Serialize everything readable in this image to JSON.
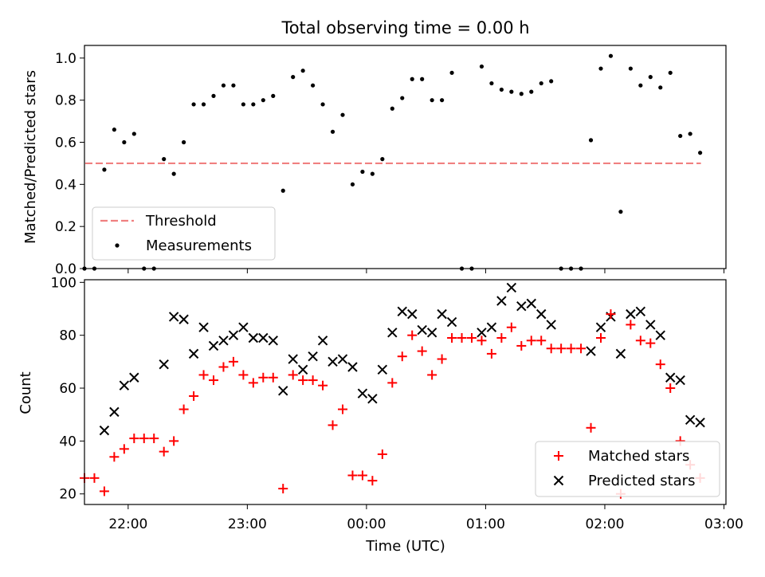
{
  "chart_data": [
    {
      "type": "scatter",
      "title": "Total observing time = 0.00 h",
      "xlabel": "",
      "ylabel": "Matched/Predicted stars",
      "xlim": [
        "21:38",
        "03:01"
      ],
      "ylim": [
        0,
        1.06
      ],
      "yticks": [
        "0.0",
        "0.2",
        "0.4",
        "0.6",
        "0.8",
        "1.0"
      ],
      "grid": false,
      "legend": {
        "placement": "lower-left",
        "entries": [
          "Threshold",
          "Measurements"
        ]
      },
      "threshold": {
        "name": "Threshold",
        "value": 0.5,
        "x_start": "21:38",
        "x_end": "02:48",
        "color": "#f08080",
        "style": "dashed"
      },
      "series": [
        {
          "name": "Measurements",
          "color": "#000000",
          "marker": "dot",
          "points": [
            [
              "21:38",
              0.0
            ],
            [
              "21:43",
              0.0
            ],
            [
              "21:48",
              0.47
            ],
            [
              "21:53",
              0.66
            ],
            [
              "21:58",
              0.6
            ],
            [
              "22:03",
              0.64
            ],
            [
              "22:08",
              0.0
            ],
            [
              "22:13",
              0.0
            ],
            [
              "22:18",
              0.52
            ],
            [
              "22:23",
              0.45
            ],
            [
              "22:28",
              0.6
            ],
            [
              "22:33",
              0.78
            ],
            [
              "22:38",
              0.78
            ],
            [
              "22:43",
              0.82
            ],
            [
              "22:48",
              0.87
            ],
            [
              "22:53",
              0.87
            ],
            [
              "22:58",
              0.78
            ],
            [
              "23:03",
              0.78
            ],
            [
              "23:08",
              0.8
            ],
            [
              "23:13",
              0.82
            ],
            [
              "23:18",
              0.37
            ],
            [
              "23:23",
              0.91
            ],
            [
              "23:28",
              0.94
            ],
            [
              "23:33",
              0.87
            ],
            [
              "23:38",
              0.78
            ],
            [
              "23:43",
              0.65
            ],
            [
              "23:48",
              0.73
            ],
            [
              "23:53",
              0.4
            ],
            [
              "23:58",
              0.46
            ],
            [
              "00:03",
              0.45
            ],
            [
              "00:08",
              0.52
            ],
            [
              "00:13",
              0.76
            ],
            [
              "00:18",
              0.81
            ],
            [
              "00:23",
              0.9
            ],
            [
              "00:28",
              0.9
            ],
            [
              "00:33",
              0.8
            ],
            [
              "00:38",
              0.8
            ],
            [
              "00:43",
              0.93
            ],
            [
              "00:48",
              0.0
            ],
            [
              "00:53",
              0.0
            ],
            [
              "00:58",
              0.96
            ],
            [
              "01:03",
              0.88
            ],
            [
              "01:08",
              0.85
            ],
            [
              "01:13",
              0.84
            ],
            [
              "01:18",
              0.83
            ],
            [
              "01:23",
              0.84
            ],
            [
              "01:28",
              0.88
            ],
            [
              "01:33",
              0.89
            ],
            [
              "01:38",
              0.0
            ],
            [
              "01:43",
              0.0
            ],
            [
              "01:48",
              0.0
            ],
            [
              "01:53",
              0.61
            ],
            [
              "01:58",
              0.95
            ],
            [
              "02:03",
              1.01
            ],
            [
              "02:08",
              0.27
            ],
            [
              "02:13",
              0.95
            ],
            [
              "02:18",
              0.87
            ],
            [
              "02:23",
              0.91
            ],
            [
              "02:28",
              0.86
            ],
            [
              "02:33",
              0.93
            ],
            [
              "02:38",
              0.63
            ],
            [
              "02:43",
              0.64
            ],
            [
              "02:48",
              0.55
            ]
          ]
        }
      ]
    },
    {
      "type": "scatter",
      "title": "",
      "xlabel": "Time (UTC)",
      "ylabel": "Count",
      "xlim": [
        "21:38",
        "03:01"
      ],
      "ylim": [
        16,
        101
      ],
      "xticks": [
        "22:00",
        "23:00",
        "00:00",
        "01:00",
        "02:00",
        "03:00"
      ],
      "yticks": [
        "20",
        "40",
        "60",
        "80",
        "100"
      ],
      "grid": false,
      "legend": {
        "placement": "lower-right",
        "entries": [
          "Matched stars",
          "Predicted stars"
        ]
      },
      "series": [
        {
          "name": "Matched stars",
          "color": "#ff0000",
          "marker": "plus",
          "points": [
            [
              "21:38",
              26
            ],
            [
              "21:43",
              26
            ],
            [
              "21:48",
              21
            ],
            [
              "21:53",
              34
            ],
            [
              "21:58",
              37
            ],
            [
              "22:03",
              41
            ],
            [
              "22:08",
              41
            ],
            [
              "22:13",
              41
            ],
            [
              "22:18",
              36
            ],
            [
              "22:23",
              40
            ],
            [
              "22:28",
              52
            ],
            [
              "22:33",
              57
            ],
            [
              "22:38",
              65
            ],
            [
              "22:43",
              63
            ],
            [
              "22:48",
              68
            ],
            [
              "22:53",
              70
            ],
            [
              "22:58",
              65
            ],
            [
              "23:03",
              62
            ],
            [
              "23:08",
              64
            ],
            [
              "23:13",
              64
            ],
            [
              "23:18",
              22
            ],
            [
              "23:23",
              65
            ],
            [
              "23:28",
              63
            ],
            [
              "23:33",
              63
            ],
            [
              "23:38",
              61
            ],
            [
              "23:43",
              46
            ],
            [
              "23:48",
              52
            ],
            [
              "23:53",
              27
            ],
            [
              "23:58",
              27
            ],
            [
              "00:03",
              25
            ],
            [
              "00:08",
              35
            ],
            [
              "00:13",
              62
            ],
            [
              "00:18",
              72
            ],
            [
              "00:23",
              80
            ],
            [
              "00:28",
              74
            ],
            [
              "00:33",
              65
            ],
            [
              "00:38",
              71
            ],
            [
              "00:43",
              79
            ],
            [
              "00:48",
              79
            ],
            [
              "00:53",
              79
            ],
            [
              "00:58",
              78
            ],
            [
              "01:03",
              73
            ],
            [
              "01:08",
              79
            ],
            [
              "01:13",
              83
            ],
            [
              "01:18",
              76
            ],
            [
              "01:23",
              78
            ],
            [
              "01:28",
              78
            ],
            [
              "01:33",
              75
            ],
            [
              "01:38",
              75
            ],
            [
              "01:43",
              75
            ],
            [
              "01:48",
              75
            ],
            [
              "01:53",
              45
            ],
            [
              "01:58",
              79
            ],
            [
              "02:03",
              88
            ],
            [
              "02:08",
              20
            ],
            [
              "02:13",
              84
            ],
            [
              "02:18",
              78
            ],
            [
              "02:23",
              77
            ],
            [
              "02:28",
              69
            ],
            [
              "02:33",
              60
            ],
            [
              "02:38",
              40
            ],
            [
              "02:43",
              31
            ],
            [
              "02:48",
              26
            ]
          ]
        },
        {
          "name": "Predicted stars",
          "color": "#000000",
          "marker": "x",
          "points": [
            [
              "21:48",
              44
            ],
            [
              "21:53",
              51
            ],
            [
              "21:58",
              61
            ],
            [
              "22:03",
              64
            ],
            [
              "22:18",
              69
            ],
            [
              "22:23",
              87
            ],
            [
              "22:28",
              86
            ],
            [
              "22:33",
              73
            ],
            [
              "22:38",
              83
            ],
            [
              "22:43",
              76
            ],
            [
              "22:48",
              78
            ],
            [
              "22:53",
              80
            ],
            [
              "22:58",
              83
            ],
            [
              "23:03",
              79
            ],
            [
              "23:08",
              79
            ],
            [
              "23:13",
              78
            ],
            [
              "23:18",
              59
            ],
            [
              "23:23",
              71
            ],
            [
              "23:28",
              67
            ],
            [
              "23:33",
              72
            ],
            [
              "23:38",
              78
            ],
            [
              "23:43",
              70
            ],
            [
              "23:48",
              71
            ],
            [
              "23:53",
              68
            ],
            [
              "23:58",
              58
            ],
            [
              "00:03",
              56
            ],
            [
              "00:08",
              67
            ],
            [
              "00:13",
              81
            ],
            [
              "00:18",
              89
            ],
            [
              "00:23",
              88
            ],
            [
              "00:28",
              82
            ],
            [
              "00:33",
              81
            ],
            [
              "00:38",
              88
            ],
            [
              "00:43",
              85
            ],
            [
              "00:58",
              81
            ],
            [
              "01:03",
              83
            ],
            [
              "01:08",
              93
            ],
            [
              "01:13",
              98
            ],
            [
              "01:18",
              91
            ],
            [
              "01:23",
              92
            ],
            [
              "01:28",
              88
            ],
            [
              "01:33",
              84
            ],
            [
              "01:53",
              74
            ],
            [
              "01:58",
              83
            ],
            [
              "02:03",
              87
            ],
            [
              "02:08",
              73
            ],
            [
              "02:13",
              88
            ],
            [
              "02:18",
              89
            ],
            [
              "02:23",
              84
            ],
            [
              "02:28",
              80
            ],
            [
              "02:33",
              64
            ],
            [
              "02:38",
              63
            ],
            [
              "02:43",
              48
            ],
            [
              "02:48",
              47
            ]
          ]
        }
      ]
    }
  ]
}
